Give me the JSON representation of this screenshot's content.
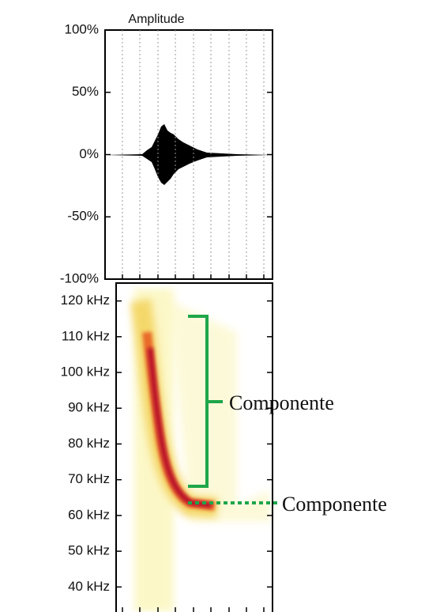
{
  "chart_data": [
    {
      "type": "waveform",
      "title": "Amplitude",
      "ylim": [
        -100,
        100
      ],
      "yticks": [
        {
          "value": 100,
          "label": "100%"
        },
        {
          "value": 50,
          "label": "50%"
        },
        {
          "value": 0,
          "label": "0%"
        },
        {
          "value": -50,
          "label": "-50%"
        },
        {
          "value": -100,
          "label": "-100%"
        }
      ],
      "grid": true
    },
    {
      "type": "spectrogram",
      "ylim": [
        33,
        125
      ],
      "yticks": [
        {
          "value": 120,
          "label": "120 kHz"
        },
        {
          "value": 110,
          "label": "110 kHz"
        },
        {
          "value": 100,
          "label": "100 kHz"
        },
        {
          "value": 90,
          "label": "90 kHz"
        },
        {
          "value": 80,
          "label": "80 kHz"
        },
        {
          "value": 70,
          "label": "70 kHz"
        },
        {
          "value": 60,
          "label": "60 kHz"
        },
        {
          "value": 50,
          "label": "50 kHz"
        },
        {
          "value": 40,
          "label": "40 kHz"
        }
      ],
      "annotations": [
        "Componente",
        "Componente"
      ],
      "annotation_color": "#1fa64a"
    }
  ]
}
